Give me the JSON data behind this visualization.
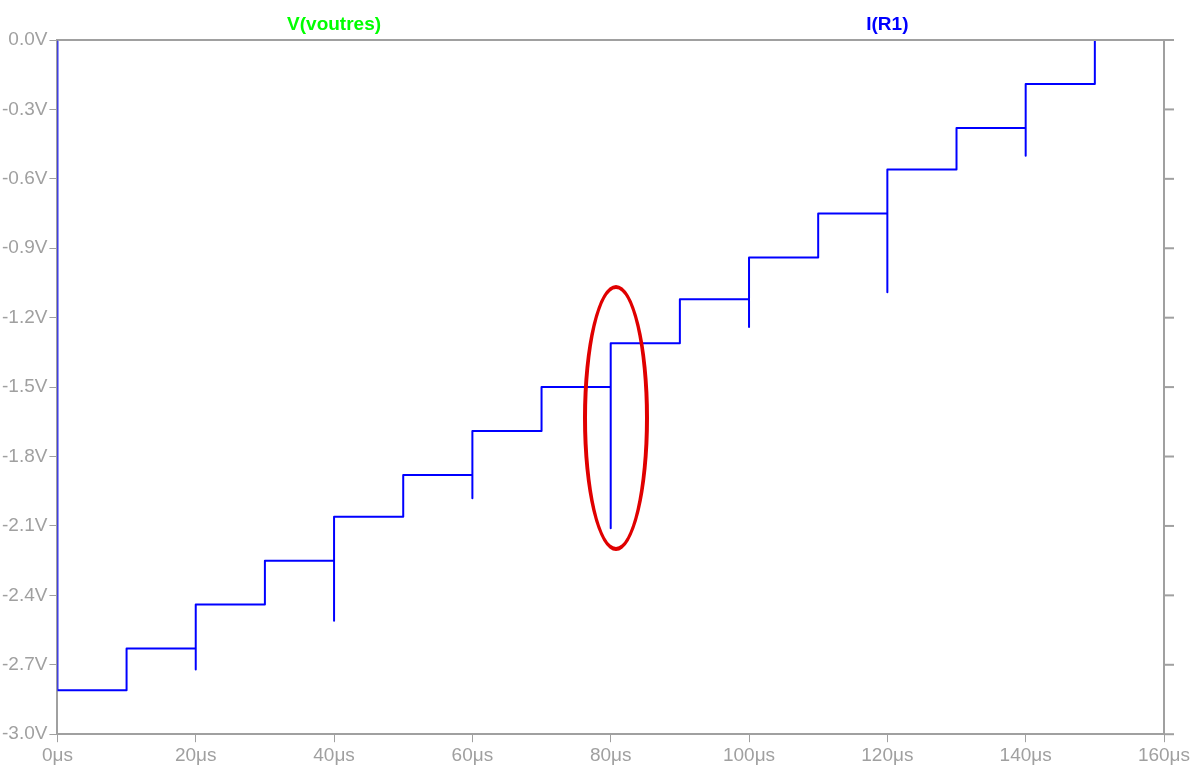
{
  "chart_data": {
    "type": "line",
    "x": [
      0,
      0,
      10,
      10,
      20,
      20,
      20,
      30,
      30,
      40,
      40,
      40,
      50,
      50,
      60,
      60,
      60,
      70,
      70,
      80,
      80,
      80,
      90,
      90,
      100,
      100,
      100,
      110,
      110,
      120,
      120,
      120,
      130,
      130,
      140,
      140,
      140,
      150,
      150,
      160
    ],
    "series": [
      {
        "name": "V(voutres)",
        "color": "#00ff00",
        "values": [
          null,
          null,
          null,
          null,
          null,
          null,
          null,
          null,
          null,
          null,
          null,
          null,
          null,
          null,
          null,
          null,
          null,
          null,
          null,
          null,
          null,
          null,
          null,
          null,
          null,
          null,
          null,
          null,
          null,
          null,
          null,
          null,
          null,
          null,
          null,
          null,
          null,
          null,
          null,
          null
        ]
      },
      {
        "name": "I(R1)",
        "color": "#0000ff",
        "values": [
          0,
          -2.81,
          -2.81,
          -2.63,
          -2.63,
          -2.72,
          -2.44,
          -2.44,
          -2.25,
          -2.25,
          -2.51,
          -2.06,
          -2.06,
          -1.88,
          -1.88,
          -1.98,
          -1.69,
          -1.69,
          -1.5,
          -1.5,
          -2.11,
          -1.31,
          -1.31,
          -1.12,
          -1.12,
          -1.24,
          -0.94,
          -0.94,
          -0.75,
          -0.75,
          -1.09,
          -0.56,
          -0.56,
          -0.38,
          -0.38,
          -0.5,
          -0.19,
          -0.19,
          0,
          0
        ]
      }
    ],
    "xlim": [
      0,
      160
    ],
    "xticks": [
      {
        "value": 0,
        "label": "0μs"
      },
      {
        "value": 20,
        "label": "20μs"
      },
      {
        "value": 40,
        "label": "40μs"
      },
      {
        "value": 60,
        "label": "60μs"
      },
      {
        "value": 80,
        "label": "80μs"
      },
      {
        "value": 100,
        "label": "100μs"
      },
      {
        "value": 120,
        "label": "120μs"
      },
      {
        "value": 140,
        "label": "140μs"
      },
      {
        "value": 160,
        "label": "160μs"
      }
    ],
    "ylim": [
      -3,
      0
    ],
    "yticks": [
      {
        "value": 0,
        "label": "0.0V"
      },
      {
        "value": -0.3,
        "label": "-0.3V"
      },
      {
        "value": -0.6,
        "label": "-0.6V"
      },
      {
        "value": -0.9,
        "label": "-0.9V"
      },
      {
        "value": -1.2,
        "label": "-1.2V"
      },
      {
        "value": -1.5,
        "label": "-1.5V"
      },
      {
        "value": -1.8,
        "label": "-1.8V"
      },
      {
        "value": -2.1,
        "label": "-2.1V"
      },
      {
        "value": -2.4,
        "label": "-2.4V"
      },
      {
        "value": -2.7,
        "label": "-2.7V"
      },
      {
        "value": -3,
        "label": "-3.0V"
      }
    ],
    "legend": "top",
    "marker": "none",
    "line_style": "solid",
    "grid": false
  }
}
